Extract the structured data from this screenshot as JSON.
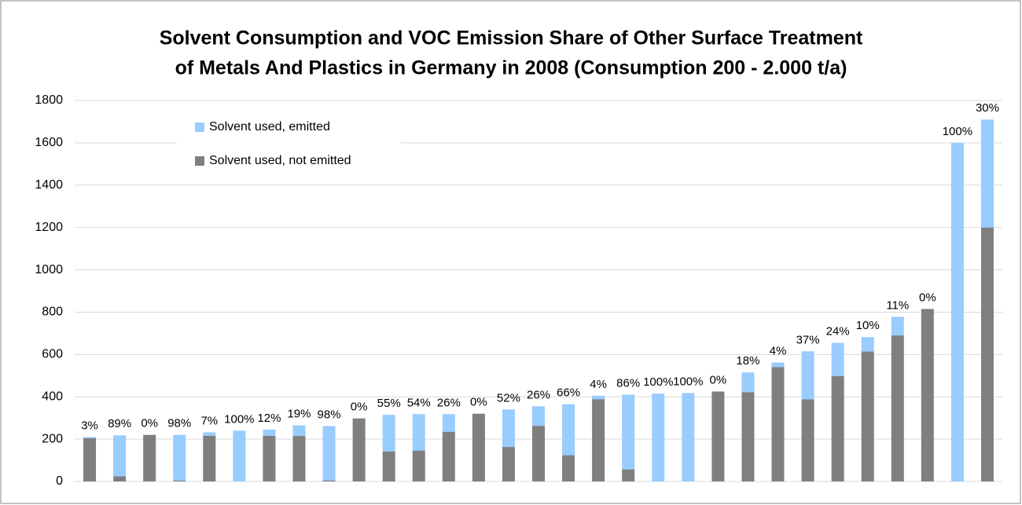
{
  "chart_data": {
    "type": "stacked_bar",
    "title": "Solvent Consumption and VOC Emission Share of Other Surface Treatment",
    "subtitle": "of Metals And Plastics in Germany in 2008 (Consumption 200 - 2.000 t/a)",
    "categories": [
      null,
      null,
      null,
      null,
      null,
      null,
      null,
      null,
      null,
      null,
      null,
      null,
      null,
      null,
      null,
      null,
      null,
      null,
      null,
      null,
      null,
      null,
      null,
      null,
      null,
      null,
      null,
      null,
      null,
      null,
      null
    ],
    "series": [
      {
        "name": "Solvent used, emitted",
        "color": "#99ccff",
        "values": [
          6,
          194,
          0,
          216,
          16,
          240,
          29,
          50,
          257,
          0,
          173,
          172,
          83,
          0,
          177,
          92,
          241,
          16,
          353,
          415,
          418,
          0,
          93,
          22,
          227,
          157,
          68,
          88,
          0,
          1600,
          510
        ]
      },
      {
        "name": "Solvent used, not emitted",
        "color": "#7f7f7f",
        "values": [
          204,
          24,
          220,
          4,
          216,
          0,
          216,
          215,
          5,
          298,
          142,
          146,
          235,
          320,
          163,
          263,
          124,
          389,
          57,
          0,
          0,
          425,
          422,
          540,
          388,
          498,
          614,
          690,
          815,
          0,
          1200
        ]
      }
    ],
    "data_labels": [
      "3%",
      "89%",
      "0%",
      "98%",
      "7%",
      "100%",
      "12%",
      "19%",
      "98%",
      "0%",
      "55%",
      "54%",
      "26%",
      "0%",
      "52%",
      "26%",
      "66%",
      "4%",
      "86%",
      "100%",
      "100%",
      "0%",
      "18%",
      "4%",
      "37%",
      "24%",
      "10%",
      "11%",
      "0%",
      "100%",
      "30%"
    ],
    "ylim": [
      0,
      1800
    ],
    "yticks": [
      0,
      200,
      400,
      600,
      800,
      1000,
      1200,
      1400,
      1600,
      1800
    ],
    "grid": true,
    "legend": "upper left"
  }
}
